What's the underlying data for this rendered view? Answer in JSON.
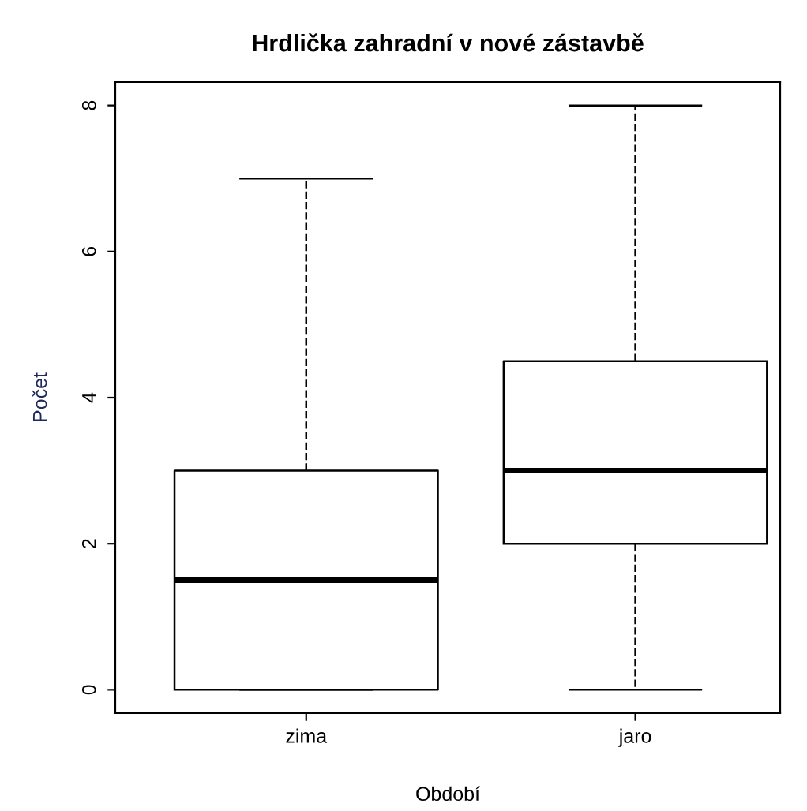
{
  "chart_data": {
    "type": "box",
    "title": "Hrdlička zahradní v nové zástavbě",
    "xlabel": "Období",
    "ylabel": "Počet",
    "categories": [
      "zima",
      "jaro"
    ],
    "boxes": [
      {
        "low": 0,
        "q1": 0,
        "median": 1.5,
        "q3": 3,
        "high": 7
      },
      {
        "low": 0,
        "q1": 2,
        "median": 3,
        "q3": 4.5,
        "high": 8
      }
    ],
    "ylim": [
      -0.32,
      8.32
    ],
    "yticks": [
      0,
      2,
      4,
      6,
      8
    ],
    "grid": false,
    "legend": false,
    "line_style": "dashed"
  }
}
